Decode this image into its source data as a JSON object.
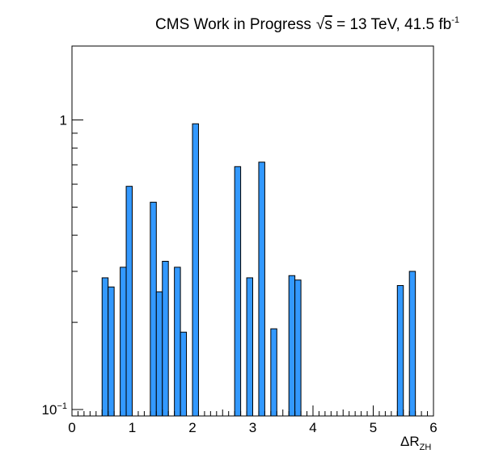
{
  "chart_data": {
    "type": "bar",
    "title": {
      "prefix": "CMS Work in Progress",
      "sqrt_symbol": "√",
      "sqrt_arg": "s",
      "rest": " = 13 TeV, 41.5 fb",
      "superscript": "-1"
    },
    "xlabel": {
      "main": "ΔR",
      "subscript": "ZH"
    },
    "ylabel": "",
    "xlim": [
      0,
      6
    ],
    "ylim": [
      0.095,
      1.8
    ],
    "y_scale": "log",
    "grid": false,
    "legend": "none",
    "bar_color": "#3399ff",
    "edge_color": "#000000",
    "bin_width": 0.1,
    "x_ticks": [
      {
        "value": 0,
        "label": "0"
      },
      {
        "value": 1,
        "label": "1"
      },
      {
        "value": 2,
        "label": "2"
      },
      {
        "value": 3,
        "label": "3"
      },
      {
        "value": 4,
        "label": "4"
      },
      {
        "value": 5,
        "label": "5"
      },
      {
        "value": 6,
        "label": "6"
      }
    ],
    "y_ticks": [
      {
        "value": 0.1,
        "base": "10",
        "exponent": "−1"
      },
      {
        "value": 1,
        "base": "1",
        "exponent": ""
      }
    ],
    "bins": [
      {
        "x": 0.5,
        "value": 0.285
      },
      {
        "x": 0.6,
        "value": 0.265
      },
      {
        "x": 0.8,
        "value": 0.31
      },
      {
        "x": 0.9,
        "value": 0.59
      },
      {
        "x": 1.3,
        "value": 0.52
      },
      {
        "x": 1.4,
        "value": 0.255
      },
      {
        "x": 1.5,
        "value": 0.325
      },
      {
        "x": 1.7,
        "value": 0.31
      },
      {
        "x": 1.8,
        "value": 0.185
      },
      {
        "x": 2.0,
        "value": 0.97
      },
      {
        "x": 2.7,
        "value": 0.69
      },
      {
        "x": 2.9,
        "value": 0.285
      },
      {
        "x": 3.1,
        "value": 0.715
      },
      {
        "x": 3.3,
        "value": 0.19
      },
      {
        "x": 3.6,
        "value": 0.29
      },
      {
        "x": 3.7,
        "value": 0.28
      },
      {
        "x": 5.4,
        "value": 0.268
      },
      {
        "x": 5.6,
        "value": 0.3
      }
    ]
  }
}
